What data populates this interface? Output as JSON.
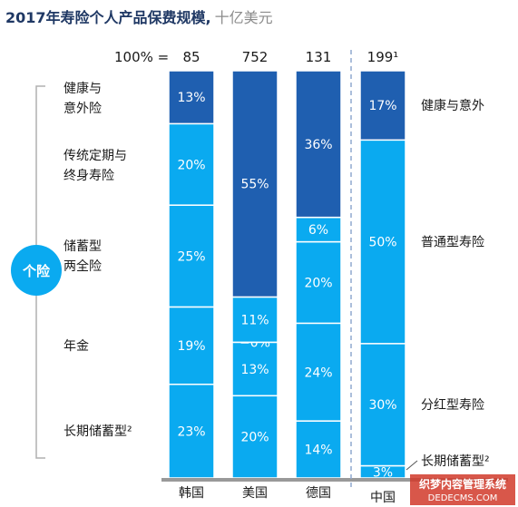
{
  "title": {
    "main": "2017年寿险个人产品保费规模,",
    "sub": "十亿美元"
  },
  "total_prefix": "100% =",
  "badge": "个险",
  "left_categories": [
    [
      "健康与",
      "意外险"
    ],
    [
      "传统定期与",
      "终身寿险"
    ],
    [
      "储蓄型",
      "两全险"
    ],
    [
      "年金"
    ],
    [
      "长期储蓄型²"
    ]
  ],
  "right_categories": [
    "健康与意外",
    "普通型寿险",
    "分红型寿险",
    "长期储蓄型²"
  ],
  "colors": {
    "dark": "#1f5fb0",
    "light": "#0aaaf0",
    "axis": "#999999",
    "separator": "#8fa8cf",
    "bracket": "#b0b0b0"
  },
  "chart_data": {
    "type": "bar",
    "stacked": true,
    "percent": true,
    "categories": [
      "韩国",
      "美国",
      "德国",
      "中国"
    ],
    "totals": [
      "85",
      "752",
      "131",
      "199¹"
    ],
    "segments_bottom_to_top": [
      {
        "country": "韩国",
        "values": [
          23,
          19,
          25,
          20,
          13
        ],
        "labels": [
          "23%",
          "19%",
          "25%",
          "20%",
          "13%"
        ],
        "shades": [
          "light",
          "light",
          "light",
          "light",
          "dark"
        ]
      },
      {
        "country": "美国",
        "values": [
          20,
          13,
          0,
          11,
          55
        ],
        "labels": [
          "20%",
          "13%",
          "0%",
          "11%",
          "55%"
        ],
        "shades": [
          "light",
          "light",
          "light",
          "light",
          "dark"
        ]
      },
      {
        "country": "德国",
        "values": [
          14,
          24,
          20,
          6,
          36
        ],
        "labels": [
          "14%",
          "24%",
          "20%",
          "6%",
          "36%"
        ],
        "shades": [
          "light",
          "light",
          "light",
          "light",
          "dark"
        ]
      },
      {
        "country": "中国",
        "values": [
          3,
          30,
          50,
          17
        ],
        "labels": [
          "3%",
          "30%",
          "50%",
          "17%"
        ],
        "shades": [
          "light",
          "light",
          "light",
          "dark"
        ]
      }
    ]
  },
  "watermark": {
    "line1": "织梦内容管理系统",
    "line2": "DEDECMS.COM"
  }
}
